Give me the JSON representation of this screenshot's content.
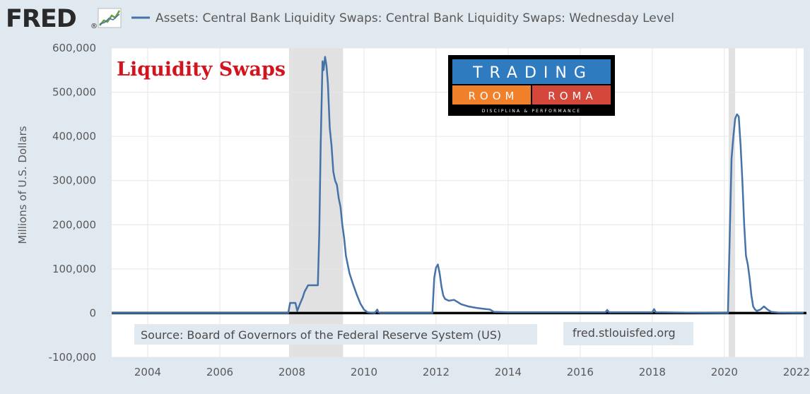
{
  "brand": {
    "name": "FRED",
    "trademark": "®"
  },
  "overlay_title": "Liquidity Swaps",
  "logo": {
    "line1": "TRADING",
    "line2_left": "ROOM",
    "line2_right": "ROMA",
    "line3": "DISCIPLINA & PERFORMANCE",
    "colors": {
      "background": "#000000",
      "blue": "#2e7bbf",
      "orange": "#f0812a",
      "red": "#d5473a"
    }
  },
  "source_note": "Source: Board of Governors of the Federal Reserve System (US)",
  "site_note": "fred.stlouisfed.org",
  "colors": {
    "line": "#4572a7",
    "recession": "#e1e1e1",
    "plot_background": "#ffffff",
    "page_background": "#e1e9f0"
  },
  "chart_data": {
    "type": "line",
    "title": "",
    "ylabel": "Millions of U.S. Dollars",
    "xlabel": "",
    "xlim": [
      2003.0,
      2022.2
    ],
    "ylim": [
      -100000,
      600000
    ],
    "x_ticks": [
      2004,
      2006,
      2008,
      2010,
      2012,
      2014,
      2016,
      2018,
      2020,
      2022
    ],
    "x_tick_labels": [
      "2004",
      "2006",
      "2008",
      "2010",
      "2012",
      "2014",
      "2016",
      "2018",
      "2020",
      "2022"
    ],
    "y_ticks": [
      -100000,
      0,
      100000,
      200000,
      300000,
      400000,
      500000,
      600000
    ],
    "y_tick_labels": [
      "-100,000",
      "0",
      "100,000",
      "200,000",
      "300,000",
      "400,000",
      "500,000",
      "600,000"
    ],
    "grid": true,
    "legend": "top",
    "recessions": [
      [
        2007.92,
        2009.42
      ],
      [
        2020.12,
        2020.3
      ]
    ],
    "series": [
      {
        "name": "Assets: Central Bank Liquidity Swaps: Central Bank Liquidity Swaps: Wednesday Level",
        "x": [
          2003.0,
          2007.9,
          2007.95,
          2008.1,
          2008.15,
          2008.22,
          2008.3,
          2008.35,
          2008.45,
          2008.6,
          2008.68,
          2008.72,
          2008.76,
          2008.8,
          2008.85,
          2008.88,
          2008.92,
          2008.96,
          2009.0,
          2009.05,
          2009.1,
          2009.15,
          2009.2,
          2009.25,
          2009.3,
          2009.35,
          2009.4,
          2009.45,
          2009.5,
          2009.6,
          2009.7,
          2009.8,
          2009.9,
          2010.0,
          2010.1,
          2010.3,
          2010.37,
          2010.4,
          2010.45,
          2011.9,
          2011.95,
          2012.0,
          2012.05,
          2012.1,
          2012.15,
          2012.2,
          2012.25,
          2012.35,
          2012.5,
          2012.6,
          2012.7,
          2012.9,
          2013.1,
          2013.3,
          2013.5,
          2013.6,
          2014.0,
          2016.7,
          2016.75,
          2016.8,
          2018.0,
          2018.05,
          2018.1,
          2020.1,
          2020.2,
          2020.25,
          2020.3,
          2020.35,
          2020.4,
          2020.45,
          2020.5,
          2020.55,
          2020.6,
          2020.65,
          2020.7,
          2020.75,
          2020.8,
          2020.85,
          2020.9,
          2021.0,
          2021.1,
          2021.2,
          2021.3,
          2021.5,
          2022.0,
          2022.2
        ],
        "values": [
          0,
          0,
          23000,
          23000,
          5000,
          20000,
          35000,
          48000,
          63000,
          63000,
          63000,
          63000,
          180000,
          380000,
          570000,
          550000,
          580000,
          560000,
          520000,
          420000,
          380000,
          320000,
          300000,
          290000,
          260000,
          240000,
          200000,
          170000,
          130000,
          90000,
          65000,
          42000,
          22000,
          8000,
          2000,
          0,
          8000,
          2000,
          0,
          0,
          80000,
          103000,
          110000,
          90000,
          60000,
          40000,
          32000,
          28000,
          30000,
          25000,
          20000,
          15000,
          12000,
          10000,
          8000,
          3000,
          2000,
          2000,
          7000,
          2000,
          2000,
          9000,
          2000,
          0,
          350000,
          400000,
          440000,
          450000,
          445000,
          380000,
          300000,
          200000,
          130000,
          110000,
          80000,
          40000,
          15000,
          8000,
          5000,
          8000,
          15000,
          8000,
          3000,
          1000,
          500,
          500
        ]
      }
    ]
  }
}
